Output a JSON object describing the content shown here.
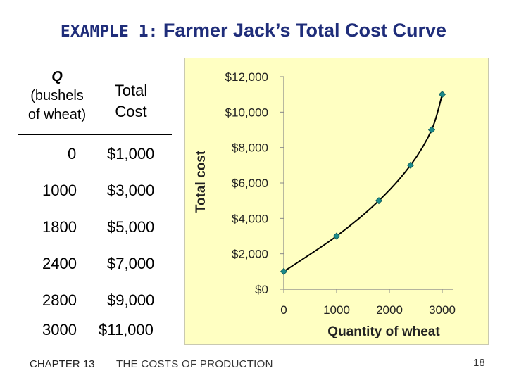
{
  "slide": {
    "title_lead": "EXAMPLE 1:",
    "title_main": "Farmer Jack’s Total Cost Curve",
    "footer_chapter": "CHAPTER 13",
    "footer_subject": "THE COSTS OF PRODUCTION",
    "page_number": "18"
  },
  "table": {
    "header_q": "Q",
    "header_q_line2": "(bushels",
    "header_q_line3": "of wheat)",
    "header_cost_line1": "Total",
    "header_cost_line2": "Cost",
    "rows": [
      {
        "q": "0",
        "cost": "$1,000"
      },
      {
        "q": "1000",
        "cost": "$3,000"
      },
      {
        "q": "1800",
        "cost": "$5,000"
      },
      {
        "q": "2400",
        "cost": "$7,000"
      },
      {
        "q": "2800",
        "cost": "$9,000"
      },
      {
        "q": "3000",
        "cost": "$11,000"
      }
    ]
  },
  "chart_data": {
    "type": "line",
    "x": [
      0,
      1000,
      1800,
      2400,
      2800,
      3000
    ],
    "y": [
      1000,
      3000,
      5000,
      7000,
      9000,
      11000
    ],
    "xlabel": "Quantity of wheat",
    "ylabel": "Total cost",
    "xlim": [
      0,
      3200
    ],
    "ylim": [
      0,
      12000
    ],
    "x_ticks": [
      "0",
      "1000",
      "2000",
      "3000"
    ],
    "y_ticks": [
      "$0",
      "$2,000",
      "$4,000",
      "$6,000",
      "$8,000",
      "$10,000",
      "$12,000"
    ],
    "grid": false,
    "background_color": "#ffffc2",
    "marker_color": "#1a8a8a",
    "line_color": "#000000"
  }
}
